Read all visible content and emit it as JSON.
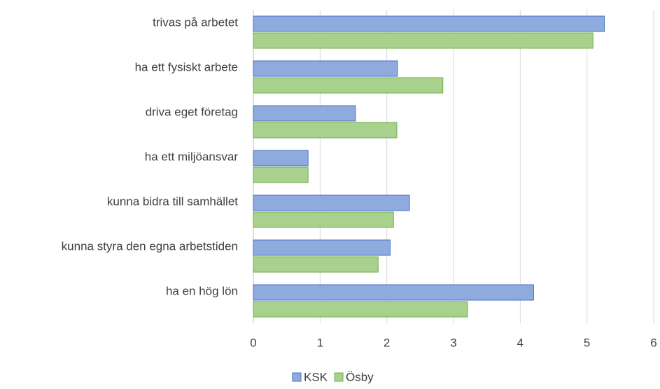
{
  "chart_data": {
    "type": "bar",
    "orientation": "horizontal",
    "categories": [
      "trivas på arbetet",
      "ha ett fysiskt arbete",
      "driva eget företag",
      "ha ett miljöansvar",
      "kunna bidra till samhället",
      "kunna styra den egna arbetstiden",
      "ha en hög lön"
    ],
    "series": [
      {
        "name": "KSK",
        "color": "#8faadc",
        "values": [
          5.26,
          2.16,
          1.53,
          0.82,
          2.34,
          2.05,
          4.2
        ]
      },
      {
        "name": "Ösby",
        "color": "#a9d18e",
        "values": [
          5.09,
          2.84,
          2.15,
          0.82,
          2.1,
          1.87,
          3.21
        ]
      }
    ],
    "xlim": [
      0,
      6
    ],
    "xticks": [
      0,
      1,
      2,
      3,
      4,
      5,
      6
    ],
    "grid": true,
    "legend": "bottom"
  }
}
